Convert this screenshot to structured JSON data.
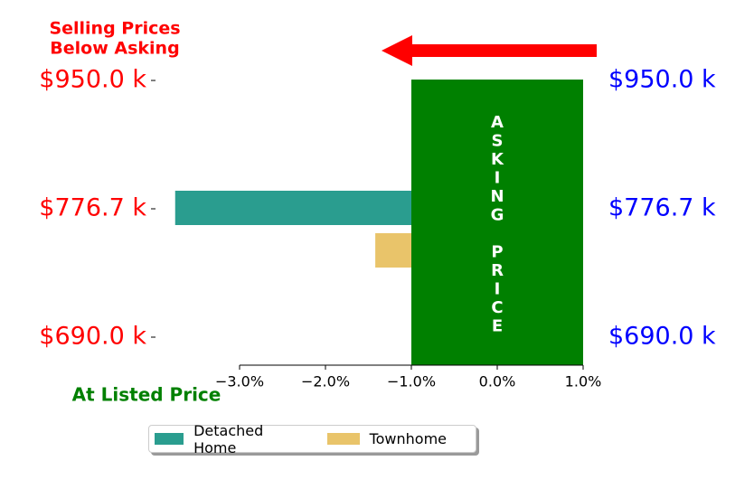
{
  "chart_data": {
    "type": "bar",
    "orientation": "horizontal",
    "title_top": [
      "Selling Prices",
      "Below Asking"
    ],
    "title_bottom": "At Listed Price",
    "asking_box_label": "ASKING PRICE",
    "left_ticks": [
      "$950.0 k",
      "$776.7 k",
      "$690.0 k"
    ],
    "right_ticks": [
      "$950.0 k",
      "$776.7 k",
      "$690.0 k"
    ],
    "x_ticks": [
      -3.0,
      -2.0,
      -1.0,
      0.0,
      1.0
    ],
    "x_tick_labels": [
      "−3.0%",
      "−2.0%",
      "−1.0%",
      "0.0%",
      "1.0%"
    ],
    "xlim": [
      -4.0,
      1.0
    ],
    "asking_band": [
      -1.0,
      1.0
    ],
    "series": [
      {
        "name": "Detached Home",
        "color": "#2a9d8f",
        "values": [
          -3.75
        ]
      },
      {
        "name": "Townhome",
        "color": "#e9c46a",
        "values": [
          -1.42
        ]
      }
    ],
    "colors": {
      "asking": "#008000",
      "arrow": "#ff0000",
      "left_labels": "#ff0000",
      "right_labels": "#0000ff",
      "bottom_title": "#008000",
      "top_title": "#ff0000"
    },
    "legend": {
      "placement": "bottom",
      "items": [
        {
          "label": "Detached Home",
          "color": "#2a9d8f"
        },
        {
          "label": "Townhome",
          "color": "#e9c46a"
        }
      ]
    }
  }
}
